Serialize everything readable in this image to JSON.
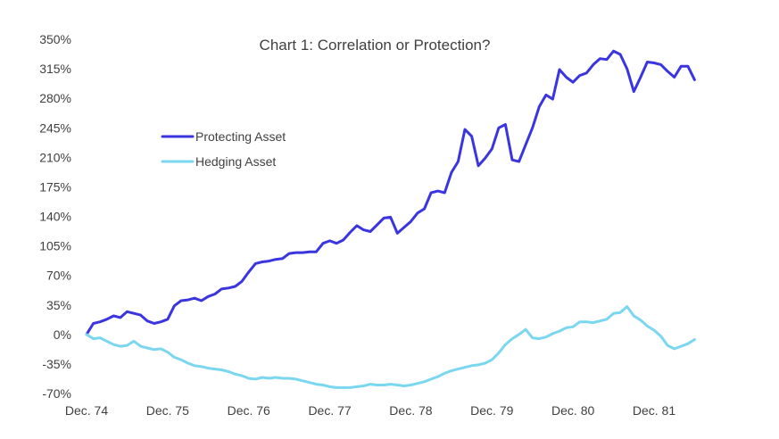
{
  "chart_data": {
    "type": "line",
    "title": "Chart 1: Correlation or Protection?",
    "xlabel": "",
    "ylabel": "",
    "ylim": [
      -70,
      350
    ],
    "yticks": [
      350,
      315,
      280,
      245,
      210,
      175,
      140,
      105,
      70,
      35,
      0,
      -35,
      -70
    ],
    "ytick_labels": [
      "350%",
      "315%",
      "280%",
      "245%",
      "210%",
      "175%",
      "140%",
      "105%",
      "70%",
      "35%",
      "0%",
      "-35%",
      "-70%"
    ],
    "xlim": [
      0,
      91
    ],
    "xticks": [
      0,
      12,
      24,
      36,
      48,
      60,
      72,
      84
    ],
    "xtick_labels": [
      "Dec. 74",
      "Dec. 75",
      "Dec. 76",
      "Dec. 77",
      "Dec. 78",
      "Dec. 79",
      "Dec. 80",
      "Dec. 81"
    ],
    "grid": false,
    "legend_position": "upper-left",
    "series": [
      {
        "name": "Protecting Asset",
        "color": "#3b35e0",
        "values": [
          0,
          13,
          15,
          18,
          22,
          20,
          27,
          25,
          23,
          16,
          13,
          15,
          18,
          34,
          40,
          41,
          43,
          40,
          45,
          48,
          54,
          55,
          57,
          63,
          74,
          84,
          86,
          87,
          89,
          90,
          96,
          97,
          97,
          98,
          98,
          108,
          111,
          108,
          112,
          121,
          129,
          124,
          122,
          130,
          138,
          139,
          120,
          127,
          134,
          144,
          149,
          168,
          170,
          168,
          192,
          205,
          243,
          235,
          200,
          209,
          220,
          245,
          249,
          207,
          205,
          225,
          245,
          270,
          284,
          279,
          314,
          305,
          299,
          307,
          310,
          320,
          327,
          326,
          336,
          332,
          315,
          288,
          305,
          323,
          322,
          320,
          312,
          305,
          318,
          318,
          302
        ]
      },
      {
        "name": "Hedging Asset",
        "color": "#7ad7ef",
        "values": [
          0,
          -5,
          -4,
          -8,
          -12,
          -14,
          -13,
          -8,
          -14,
          -16,
          -18,
          -17,
          -21,
          -27,
          -30,
          -34,
          -37,
          -38,
          -40,
          -41,
          -42,
          -44,
          -47,
          -49,
          -52,
          -53,
          -51,
          -52,
          -51,
          -52,
          -52,
          -53,
          -55,
          -57,
          -59,
          -60,
          -62,
          -63,
          -63,
          -63,
          -62,
          -61,
          -59,
          -60,
          -60,
          -59,
          -60,
          -61,
          -60,
          -58,
          -56,
          -53,
          -50,
          -46,
          -43,
          -41,
          -39,
          -37,
          -36,
          -34,
          -30,
          -22,
          -12,
          -5,
          0,
          6,
          -4,
          -5,
          -3,
          1,
          4,
          8,
          9,
          15,
          15,
          14,
          16,
          18,
          25,
          26,
          33,
          22,
          17,
          10,
          5,
          -2,
          -13,
          -17,
          -14,
          -11,
          -6
        ]
      }
    ]
  }
}
